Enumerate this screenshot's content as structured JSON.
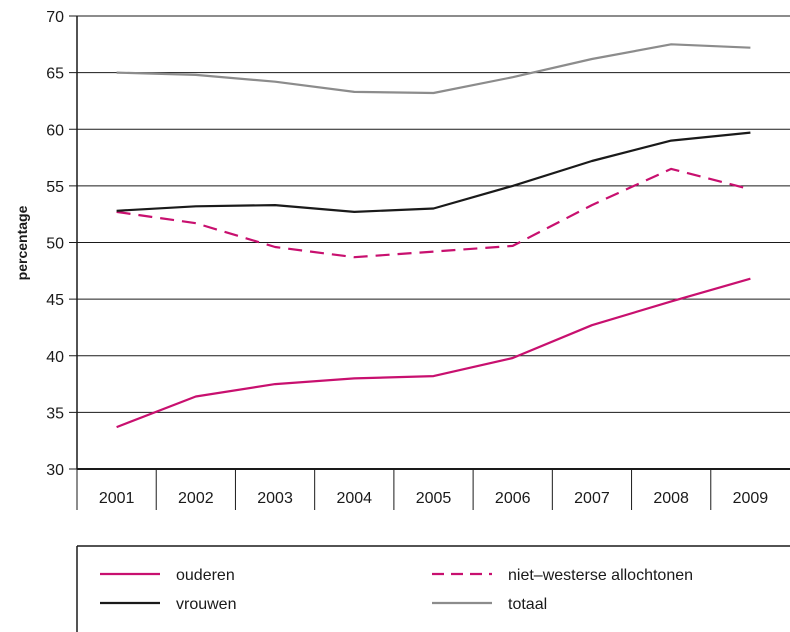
{
  "chart_data": {
    "type": "line",
    "title": "",
    "xlabel": "",
    "ylabel": "percentage",
    "ylim": [
      30,
      70
    ],
    "yticks": [
      "30",
      "35",
      "40",
      "45",
      "50",
      "55",
      "60",
      "65",
      "70"
    ],
    "categories": [
      "2001",
      "2002",
      "2003",
      "2004",
      "2005",
      "2006",
      "2007",
      "2008",
      "2009"
    ],
    "grid": "horizontal",
    "legend_position": "bottom",
    "series": [
      {
        "name": "ouderen",
        "color": "#c8106f",
        "style": "solid",
        "values": [
          33.7,
          36.4,
          37.5,
          38.0,
          38.2,
          39.8,
          42.7,
          44.8,
          46.8
        ]
      },
      {
        "name": "niet-westerse allochtonen",
        "color": "#c8106f",
        "style": "dashed",
        "values": [
          52.7,
          51.7,
          49.6,
          48.7,
          49.2,
          49.7,
          53.3,
          56.5,
          54.7
        ]
      },
      {
        "name": "vrouwen",
        "color": "#1a1a1a",
        "style": "solid",
        "values": [
          52.8,
          53.2,
          53.3,
          52.7,
          53.0,
          55.0,
          57.2,
          59.0,
          59.7
        ]
      },
      {
        "name": "totaal",
        "color": "#8c8c8c",
        "style": "solid",
        "values": [
          65.0,
          64.8,
          64.2,
          63.3,
          63.2,
          64.6,
          66.2,
          67.5,
          67.2
        ]
      }
    ]
  },
  "legend": {
    "items": [
      {
        "label": "ouderen"
      },
      {
        "label": "niet–westerse allochtonen"
      },
      {
        "label": "vrouwen"
      },
      {
        "label": "totaal"
      }
    ]
  }
}
